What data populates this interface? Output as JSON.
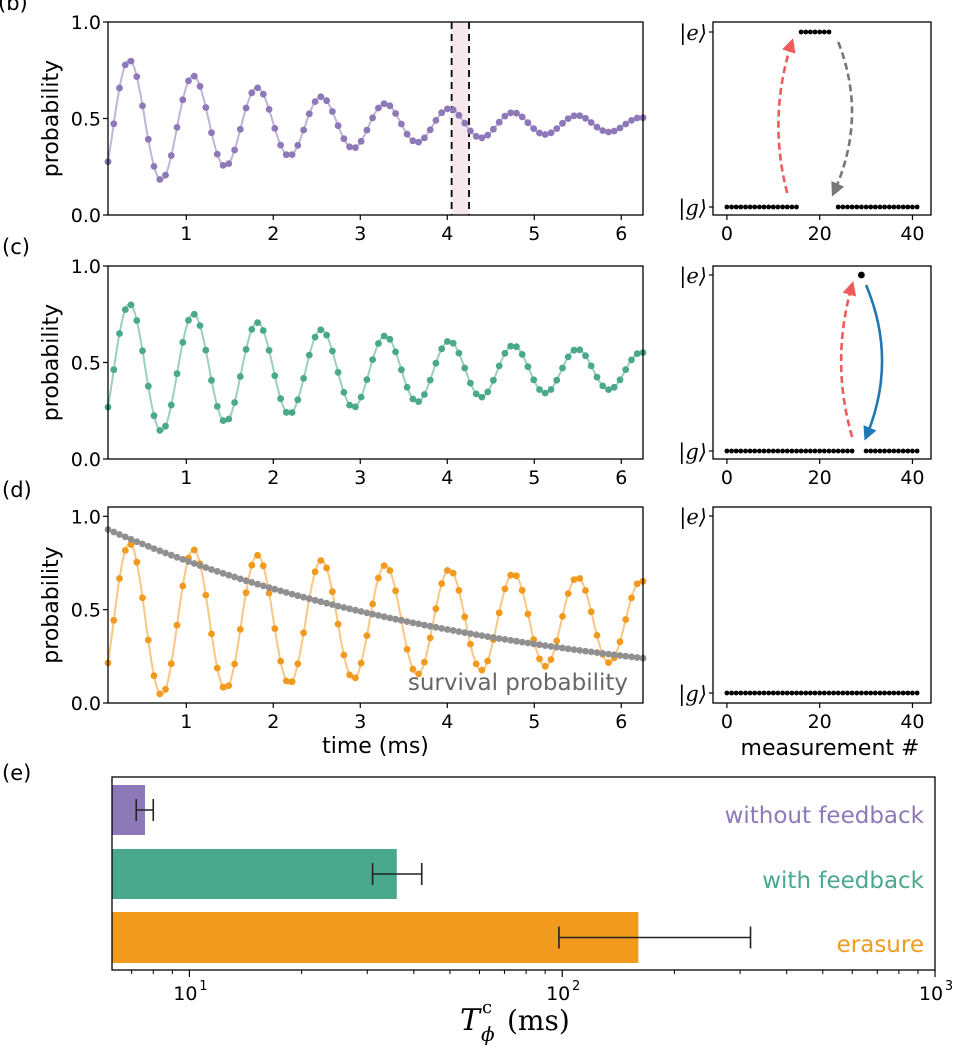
{
  "panel_labels": {
    "b": "(b)",
    "c": "(c)",
    "d": "(d)",
    "e": "(e)"
  },
  "colors": {
    "purple": "#8d78b8",
    "green": "#4aa88d",
    "orange": "#f19a1e",
    "gray": "#909090",
    "red": "#f05a5a",
    "blue": "#1f78b4",
    "dashgray": "#777777"
  },
  "chart_data": [
    {
      "id": "b",
      "type": "scatter-line",
      "ylabel": "probability",
      "xlim": [
        0.1,
        6.25
      ],
      "ylim": [
        0,
        1
      ],
      "xticks": [
        "1",
        "2",
        "3",
        "4",
        "5",
        "6"
      ],
      "yticks": [
        "0.0",
        "0.5",
        "1.0"
      ],
      "series": [
        {
          "name": "without feedback",
          "color": "purple",
          "model": {
            "freq_per_ms": 1.36,
            "amp0": 0.38,
            "tau_ms": 2.6,
            "mean": 0.47,
            "phase": 3.3,
            "n_points": 94
          }
        }
      ],
      "window_ms": [
        4.05,
        4.25
      ]
    },
    {
      "id": "c",
      "type": "scatter-line",
      "ylabel": "probability",
      "xlim": [
        0.1,
        6.25
      ],
      "ylim": [
        0,
        1
      ],
      "xticks": [
        "1",
        "2",
        "3",
        "4",
        "5",
        "6"
      ],
      "yticks": [
        "0.0",
        "0.5",
        "1.0"
      ],
      "series": [
        {
          "name": "with feedback",
          "color": "green",
          "model": {
            "freq_per_ms": 1.36,
            "amp0": 0.37,
            "tau_ms": 4.5,
            "mean": 0.46,
            "phase": 3.3,
            "n_points": 94
          }
        }
      ]
    },
    {
      "id": "d",
      "type": "scatter-line",
      "ylabel": "probability",
      "xlabel": "time (ms)",
      "xlim": [
        0.1,
        6.25
      ],
      "ylim": [
        0,
        1.05
      ],
      "xticks": [
        "1",
        "2",
        "3",
        "4",
        "5",
        "6"
      ],
      "yticks": [
        "0.0",
        "0.5",
        "1.0"
      ],
      "series": [
        {
          "name": "erasure",
          "color": "orange",
          "model": {
            "freq_per_ms": 1.36,
            "amp0": 0.43,
            "tau_ms": 9.0,
            "mean": 0.44,
            "phase": 3.3,
            "n_points": 94
          }
        },
        {
          "name": "survival probability",
          "color": "gray",
          "model": {
            "start": 0.95,
            "decay_per_ms": 0.22,
            "n_points": 94
          }
        }
      ],
      "annotation": "survival probability"
    },
    {
      "id": "b-right",
      "type": "scatter",
      "xlim": [
        -3,
        44
      ],
      "xticks": [
        "0",
        "20",
        "40"
      ],
      "levels": [
        "|e⟩",
        "|g⟩"
      ],
      "points": {
        "g_ranges": [
          [
            0,
            15
          ],
          [
            24,
            41
          ]
        ],
        "e_ranges": [
          [
            16,
            22
          ]
        ]
      },
      "arrows": [
        {
          "style": "dashed",
          "color": "red",
          "from": [
            13,
            "g"
          ],
          "to": [
            14,
            "e"
          ]
        },
        {
          "style": "dashed",
          "color": "dashgray",
          "from": [
            24,
            "e"
          ],
          "to": [
            23,
            "g"
          ]
        }
      ]
    },
    {
      "id": "c-right",
      "type": "scatter",
      "xlim": [
        -3,
        44
      ],
      "xticks": [
        "0",
        "20",
        "40"
      ],
      "levels": [
        "|e⟩",
        "|g⟩"
      ],
      "points": {
        "g_ranges": [
          [
            0,
            27
          ],
          [
            30,
            41
          ]
        ],
        "e_ranges": [
          [
            29,
            29
          ]
        ]
      },
      "arrows": [
        {
          "style": "dashed",
          "color": "red",
          "from": [
            27,
            "g"
          ],
          "to": [
            27,
            "e"
          ]
        },
        {
          "style": "solid",
          "color": "blue",
          "from": [
            30,
            "e"
          ],
          "to": [
            30,
            "g"
          ]
        }
      ]
    },
    {
      "id": "d-right",
      "type": "scatter",
      "xlim": [
        -3,
        44
      ],
      "xticks": [
        "0",
        "20",
        "40"
      ],
      "xlabel": "measurement #",
      "levels": [
        "|e⟩",
        "|g⟩"
      ],
      "points": {
        "g_ranges": [
          [
            0,
            41
          ]
        ],
        "e_ranges": []
      },
      "arrows": []
    },
    {
      "id": "e",
      "type": "bar",
      "orientation": "horizontal",
      "xscale": "log",
      "xlim": [
        6.2,
        1000
      ],
      "xticks": [
        {
          "value": 10,
          "base": "10",
          "exp": "1"
        },
        {
          "value": 100,
          "base": "10",
          "exp": "2"
        },
        {
          "value": 1000,
          "base": "10",
          "exp": "3"
        }
      ],
      "xlabel": {
        "symbol": "T",
        "sup": "c",
        "sub": "ϕ",
        "unit": "(ms)"
      },
      "categories": [
        "without feedback",
        "with feedback",
        "erasure"
      ],
      "values": [
        7.6,
        36,
        160
      ],
      "error_low": [
        7.2,
        31,
        98
      ],
      "error_high": [
        8.0,
        42,
        320
      ],
      "bar_colors": [
        "purple",
        "green",
        "orange"
      ]
    }
  ]
}
